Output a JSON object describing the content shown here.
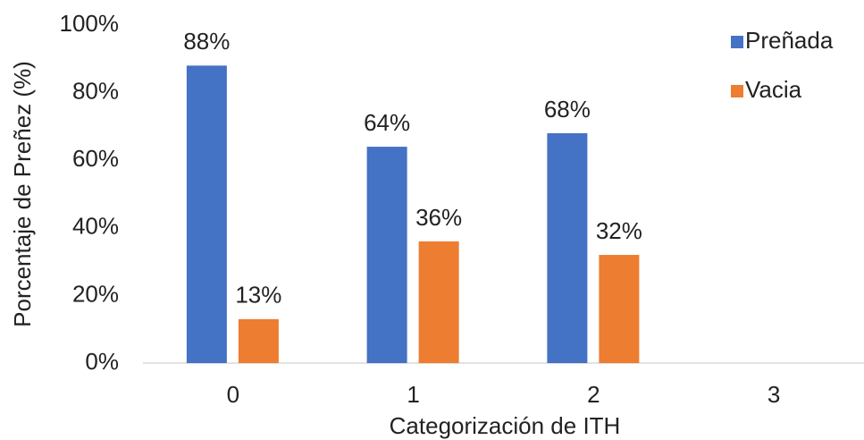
{
  "chart_data": {
    "type": "bar",
    "x_label": "Categorización de ITH",
    "y_label": "Porcentaje de Preñez (%)",
    "categories": [
      "0",
      "1",
      "2",
      "3"
    ],
    "series": [
      {
        "name": "Preñada",
        "color": "#4472c4",
        "values": [
          88,
          64,
          68,
          null
        ],
        "value_labels": [
          "88%",
          "64%",
          "68%",
          null
        ]
      },
      {
        "name": "Vacia",
        "color": "#ed7d31",
        "values": [
          13,
          36,
          32,
          null
        ],
        "value_labels": [
          "13%",
          "36%",
          "32%",
          null
        ]
      }
    ],
    "ylim": [
      0,
      100
    ],
    "yticks": [
      {
        "value": 0,
        "label": "0%"
      },
      {
        "value": 20,
        "label": "20%"
      },
      {
        "value": 40,
        "label": "40%"
      },
      {
        "value": 60,
        "label": "60%"
      },
      {
        "value": 80,
        "label": "80%"
      },
      {
        "value": 100,
        "label": "100%"
      }
    ],
    "grid": false,
    "legend": "top-right"
  }
}
